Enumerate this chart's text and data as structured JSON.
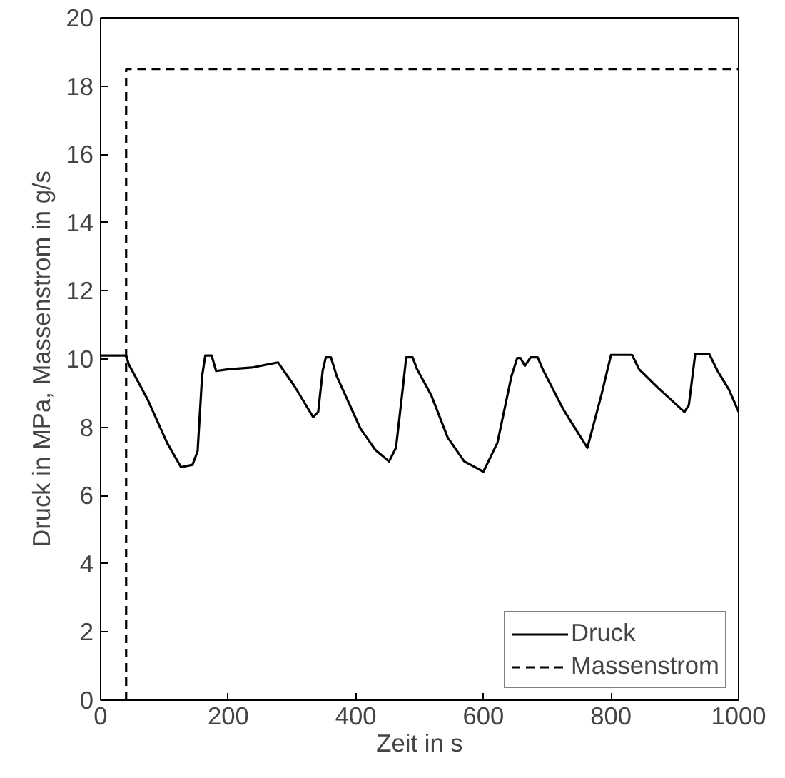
{
  "chart_data": {
    "type": "line",
    "xlabel": "Zeit in s",
    "ylabel": "Druck in MPa, Massenstrom in g/s",
    "xlim": [
      0,
      1000
    ],
    "ylim": [
      0,
      20
    ],
    "xticks": [
      0,
      200,
      400,
      600,
      800,
      1000
    ],
    "yticks": [
      0,
      2,
      4,
      6,
      8,
      10,
      12,
      14,
      16,
      18,
      20
    ],
    "grid": false,
    "legend": "bottom right",
    "series": [
      {
        "name": "Druck",
        "color": "#000000",
        "line_style": "solid",
        "x": [
          0,
          40,
          44,
          74,
          104,
          126,
          144,
          152,
          159,
          164,
          174,
          181,
          200,
          237,
          278,
          304,
          333,
          341,
          348,
          353,
          361,
          370,
          407,
          430,
          452,
          463,
          474,
          479,
          489,
          496,
          518,
          544,
          570,
          600,
          622,
          644,
          653,
          658,
          665,
          674,
          685,
          693,
          726,
          763,
          785,
          800,
          833,
          844,
          874,
          915,
          922,
          932,
          954,
          967,
          985,
          1000
        ],
        "values": [
          10.1,
          10.1,
          9.85,
          8.8,
          7.55,
          6.83,
          6.9,
          7.3,
          9.5,
          10.1,
          10.1,
          9.65,
          9.7,
          9.75,
          9.9,
          9.2,
          8.3,
          8.45,
          9.65,
          10.05,
          10.05,
          9.5,
          7.97,
          7.35,
          7.0,
          7.4,
          9.2,
          10.05,
          10.05,
          9.7,
          8.95,
          7.7,
          7.0,
          6.7,
          7.55,
          9.5,
          10.03,
          10.03,
          9.8,
          10.05,
          10.05,
          9.7,
          8.5,
          7.4,
          8.95,
          10.12,
          10.12,
          9.7,
          9.15,
          8.45,
          8.65,
          10.15,
          10.15,
          9.65,
          9.1,
          8.45
        ]
      },
      {
        "name": "Massenstrom",
        "color": "#000000",
        "line_style": "dashed",
        "x": [
          40,
          40,
          1000
        ],
        "values": [
          0,
          18.5,
          18.5
        ]
      }
    ]
  }
}
